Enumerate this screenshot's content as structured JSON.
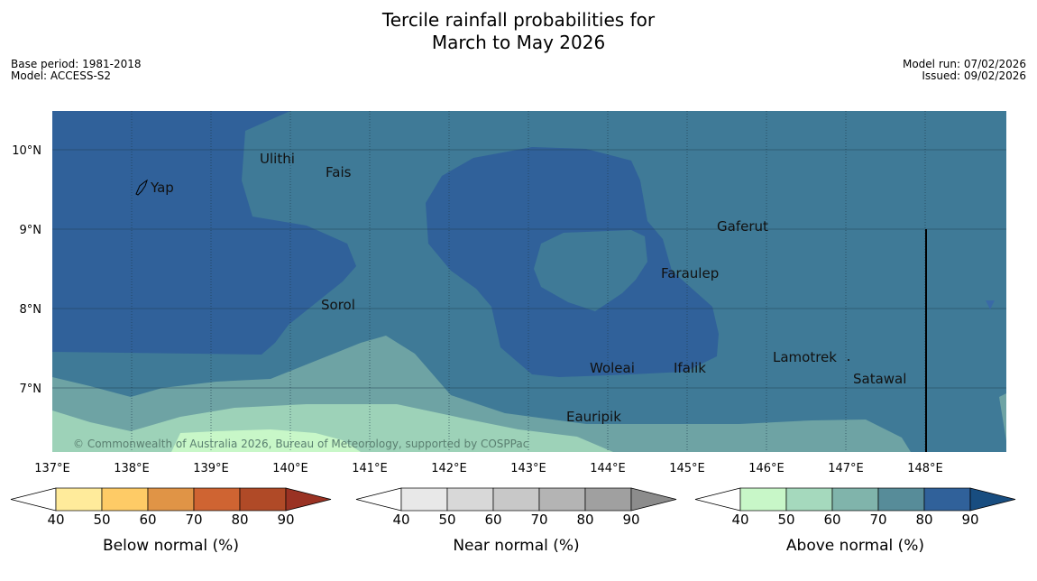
{
  "title": {
    "line1": "Tercile rainfall probabilities for",
    "line2": "March to May 2026"
  },
  "meta": {
    "base_period": "Base period: 1981-2018",
    "model": "Model: ACCESS-S2",
    "model_run": "Model run: 07/02/2026",
    "issued": "Issued: 09/02/2026"
  },
  "map": {
    "lat_labels": [
      "10°N",
      "9°N",
      "8°N",
      "7°N"
    ],
    "lon_labels": [
      "137°E",
      "138°E",
      "139°E",
      "140°E",
      "141°E",
      "142°E",
      "143°E",
      "144°E",
      "145°E",
      "146°E",
      "147°E",
      "148°E"
    ],
    "places": [
      {
        "name": "Ulithi"
      },
      {
        "name": "Fais"
      },
      {
        "name": "Yap"
      },
      {
        "name": "Gaferut"
      },
      {
        "name": "Faraulep"
      },
      {
        "name": "Sorol"
      },
      {
        "name": "Lamotrek"
      },
      {
        "name": "Woleai"
      },
      {
        "name": "Ifalik"
      },
      {
        "name": "Satawal"
      },
      {
        "name": "Eauripik"
      }
    ],
    "credit": "© Commonwealth of Australia 2026, Bureau of Meteorology, supported by COSPPac",
    "colors": {
      "above_80": "#30619a",
      "above_70": "#3f7a97",
      "above_60": "#6ea3a4",
      "above_50": "#9dd2b8",
      "above_40": "#c8f7c8"
    }
  },
  "colorbars": [
    {
      "label": "Below normal (%)",
      "ticks": [
        "40",
        "50",
        "60",
        "70",
        "80",
        "90"
      ],
      "colors": [
        "#ffffff",
        "#ffeb9b",
        "#fecb66",
        "#e09446",
        "#cf6432",
        "#b04a27",
        "#9a3223"
      ]
    },
    {
      "label": "Near normal (%)",
      "ticks": [
        "40",
        "50",
        "60",
        "70",
        "80",
        "90"
      ],
      "colors": [
        "#ffffff",
        "#e8e8e8",
        "#d8d8d8",
        "#c8c8c8",
        "#b4b4b4",
        "#a0a0a0",
        "#8c8c8c"
      ]
    },
    {
      "label": "Above normal (%)",
      "ticks": [
        "40",
        "50",
        "60",
        "70",
        "80",
        "90"
      ],
      "colors": [
        "#ffffff",
        "#c8f7c8",
        "#a5d9bd",
        "#80b4ab",
        "#578c99",
        "#30619a",
        "#184d80"
      ]
    }
  ]
}
